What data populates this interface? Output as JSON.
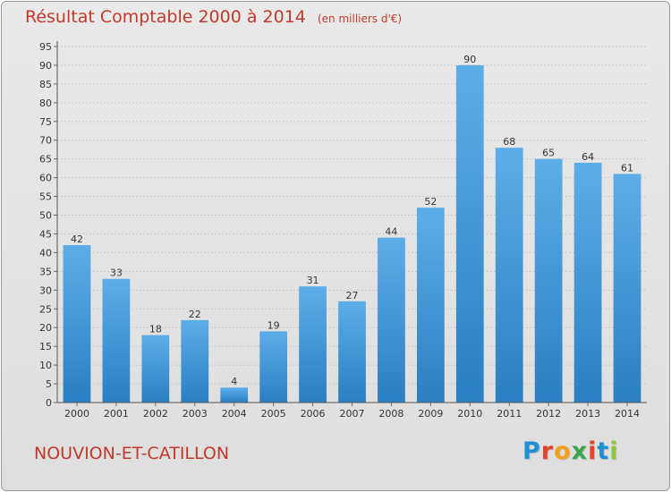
{
  "header": {
    "title": "Résultat Comptable 2000 à 2014",
    "subtitle": "(en milliers d'€)"
  },
  "footer": {
    "commune": "NOUVION-ET-CATILLON",
    "logo_letters": [
      "P",
      "r",
      "o",
      "x",
      "i",
      "t",
      "i"
    ],
    "logo_colors": [
      "#1f8fd6",
      "#e5412d",
      "#f4a01c",
      "#3aa54a",
      "#e5412d",
      "#1f8fd6",
      "#8dc63f"
    ]
  },
  "colors": {
    "bar_light": "#5dade8",
    "bar_dark": "#2a7fc2",
    "title": "#c0392b",
    "grid": "#c8c8c8",
    "axis_text": "#333333"
  },
  "chart_data": {
    "type": "bar",
    "title": "Résultat Comptable 2000 à 2014",
    "subtitle": "(en milliers d'€)",
    "xlabel": "",
    "ylabel": "",
    "categories": [
      "2000",
      "2001",
      "2002",
      "2003",
      "2004",
      "2005",
      "2006",
      "2007",
      "2008",
      "2009",
      "2010",
      "2011",
      "2012",
      "2013",
      "2014"
    ],
    "values": [
      42,
      33,
      18,
      22,
      4,
      19,
      31,
      27,
      44,
      52,
      90,
      68,
      65,
      64,
      61
    ],
    "ylim": [
      0,
      95
    ],
    "yticks": [
      0,
      5,
      10,
      15,
      20,
      25,
      30,
      35,
      40,
      45,
      50,
      55,
      60,
      65,
      70,
      75,
      80,
      85,
      90,
      95
    ],
    "grid": true,
    "legend": "none"
  }
}
